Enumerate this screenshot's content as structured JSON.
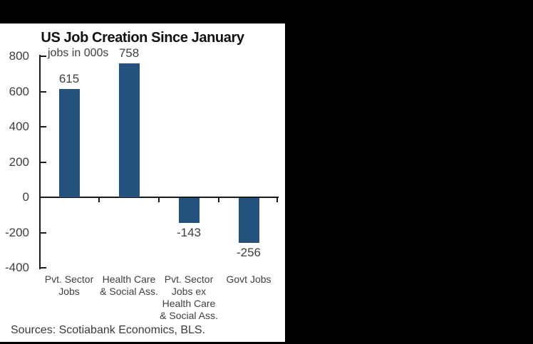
{
  "window": {
    "background_color": "#000000",
    "panel_background": "#ffffff"
  },
  "chart_data": {
    "type": "bar",
    "title": "US Job Creation Since January",
    "units_label": "jobs in 000s",
    "categories": [
      "Pvt. Sector Jobs",
      "Health Care & Social Ass.",
      "Pvt. Sector Jobs ex Health Care & Social Ass.",
      "Govt Jobs"
    ],
    "category_label_lines": [
      [
        "Pvt. Sector",
        "Jobs"
      ],
      [
        "Health Care",
        "& Social Ass."
      ],
      [
        "Pvt. Sector",
        "Jobs ex",
        "Health Care",
        "& Social Ass."
      ],
      [
        "Govt Jobs"
      ]
    ],
    "values": [
      615,
      758,
      -143,
      -256
    ],
    "value_labels": [
      "615",
      "758",
      "-143",
      "-256"
    ],
    "ylim": [
      -400,
      800
    ],
    "ytick_step": 200,
    "yticks": [
      800,
      600,
      400,
      200,
      0,
      -200,
      -400
    ],
    "grid": false,
    "legend": false,
    "bar_color": "#24517D",
    "axis_color": "#1a1a1a",
    "source": "Sources: Scotiabank Economics, BLS."
  }
}
